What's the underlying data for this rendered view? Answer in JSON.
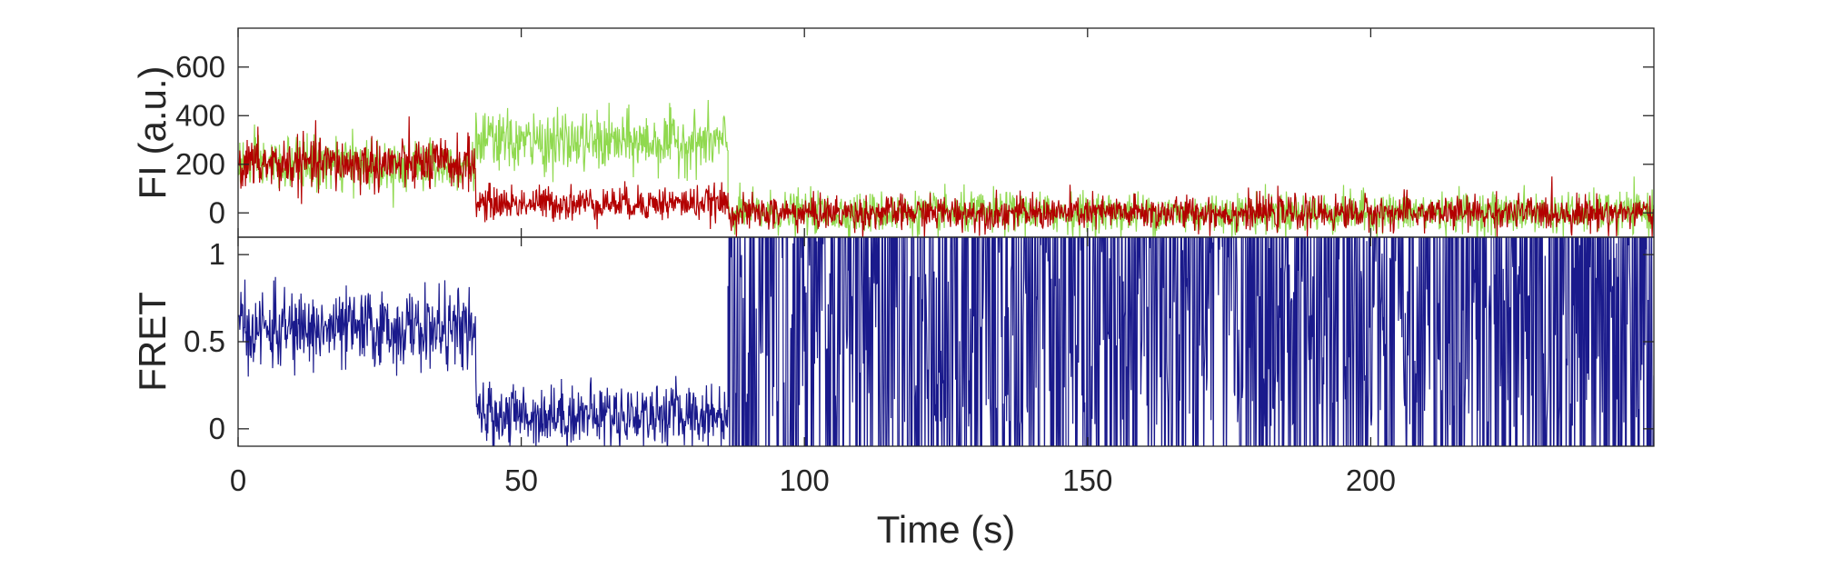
{
  "chart_data": [
    {
      "type": "line",
      "panel": "top",
      "ylabel": "FI (a.u.)",
      "xlabel": "",
      "xlim": [
        0,
        250
      ],
      "ylim": [
        -100,
        760
      ],
      "yticks": [
        0,
        200,
        400,
        600
      ],
      "ytick_labels": [
        "0",
        "200",
        "400",
        "600"
      ],
      "xticks": [
        0,
        50,
        100,
        150,
        200
      ],
      "show_xtick_labels": false,
      "series": [
        {
          "color": "#90d94f",
          "segments": [
            {
              "x_start": 0,
              "x_end": 42,
              "mean": 200,
              "noise": 55
            },
            {
              "x_start": 42,
              "x_end": 86.5,
              "mean": 290,
              "noise": 60
            },
            {
              "x_start": 86.5,
              "x_end": 250,
              "mean": 0,
              "noise": 42
            }
          ]
        },
        {
          "color": "#b30000",
          "segments": [
            {
              "x_start": 0,
              "x_end": 42,
              "mean": 200,
              "noise": 55
            },
            {
              "x_start": 42,
              "x_end": 86.5,
              "mean": 40,
              "noise": 35
            },
            {
              "x_start": 86.5,
              "x_end": 250,
              "mean": 0,
              "noise": 35
            }
          ]
        }
      ]
    },
    {
      "type": "line",
      "panel": "bottom",
      "ylabel": "FRET",
      "xlabel": "Time (s)",
      "xlim": [
        0,
        250
      ],
      "ylim": [
        -0.1,
        1.1
      ],
      "yticks": [
        0,
        0.5,
        1
      ],
      "ytick_labels": [
        "0",
        "0.5",
        "1"
      ],
      "xticks": [
        0,
        50,
        100,
        150,
        200
      ],
      "xtick_labels": [
        "0",
        "50",
        "100",
        "150",
        "200"
      ],
      "series": [
        {
          "color": "#1a1a8c",
          "segments": [
            {
              "x_start": 0,
              "x_end": 42,
              "mean": 0.57,
              "noise": 0.11
            },
            {
              "x_start": 42,
              "x_end": 86.5,
              "mean": 0.08,
              "noise": 0.09
            },
            {
              "x_start": 86.5,
              "x_end": 250,
              "mean": 0.5,
              "noise": 0.55
            }
          ]
        }
      ]
    }
  ],
  "colors": {
    "axis": "#262626",
    "background": "#ffffff"
  }
}
